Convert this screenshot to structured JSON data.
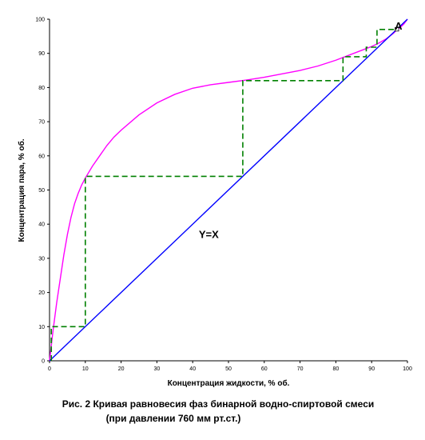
{
  "chart_data": {
    "type": "line",
    "xlabel": "Концентрация жидкости, % об.",
    "ylabel": "Концентрация пара, % об.",
    "xlim": [
      0,
      100
    ],
    "ylim": [
      0,
      100
    ],
    "x_ticks": [
      0,
      10,
      20,
      30,
      40,
      50,
      60,
      70,
      80,
      90,
      100
    ],
    "y_ticks": [
      0,
      10,
      20,
      30,
      40,
      50,
      60,
      70,
      80,
      90,
      100
    ],
    "grid": false,
    "series": [
      {
        "role": "equilibrium-curve",
        "color": "#ff00ff",
        "x": [
          0,
          1,
          2,
          3,
          4,
          5,
          6,
          7,
          8,
          9,
          10,
          12,
          14,
          16,
          18,
          20,
          25,
          30,
          35,
          40,
          45,
          50,
          55,
          60,
          65,
          70,
          75,
          80,
          85,
          88,
          90,
          92,
          94,
          96,
          97,
          98,
          99,
          100
        ],
        "y": [
          0,
          9,
          17,
          24,
          31,
          37,
          42,
          46,
          49,
          51.5,
          53.5,
          57,
          60,
          63,
          65.5,
          67.5,
          72,
          75.5,
          78,
          79.8,
          80.8,
          81.5,
          82.2,
          83,
          84,
          85,
          86.3,
          88,
          90,
          91.2,
          92,
          93,
          94.2,
          95.8,
          96.8,
          97.6,
          98.6,
          100
        ]
      },
      {
        "role": "diagonal",
        "color": "#0000ff",
        "x": [
          0,
          100
        ],
        "y": [
          0,
          100
        ]
      },
      {
        "role": "steps",
        "color": "#008000",
        "dashed": true,
        "x": [
          0.5,
          0.5,
          10,
          10,
          54,
          54,
          82,
          82,
          88.5,
          88.5,
          91.5,
          91.5,
          97
        ],
        "y": [
          0,
          10,
          10,
          54,
          54,
          82,
          82,
          89,
          89,
          91.8,
          91.8,
          97,
          97
        ]
      }
    ],
    "annotations": [
      {
        "text": "Y=X",
        "x": 44.5,
        "y": 36
      },
      {
        "text": "A",
        "x": 97.5,
        "y": 97
      }
    ]
  },
  "caption": {
    "line1": "Рис. 2  Кривая равновесия фаз бинарной водно-спиртовой смеси",
    "line2": "(при давлении 760 мм рт.ст.)"
  }
}
